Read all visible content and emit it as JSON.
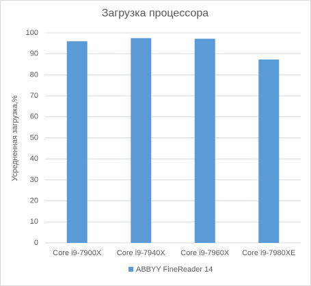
{
  "chart_data": {
    "type": "bar",
    "title": "Загрузка процессора",
    "y_label": "Усредненная загрузка,%",
    "categories": [
      "Core i9-7900X",
      "Core i9-7940X",
      "Core i9-7960X",
      "Core i9-7980XE"
    ],
    "series": [
      {
        "name": "ABBYY FineReader 14",
        "color": "#5b9bd5",
        "values": [
          96,
          97.5,
          97.2,
          87.3
        ]
      }
    ],
    "ylim": [
      0,
      100
    ],
    "yticks": [
      0,
      10,
      20,
      30,
      40,
      50,
      60,
      70,
      80,
      90,
      100
    ],
    "grid": true,
    "legend": "bottom"
  }
}
